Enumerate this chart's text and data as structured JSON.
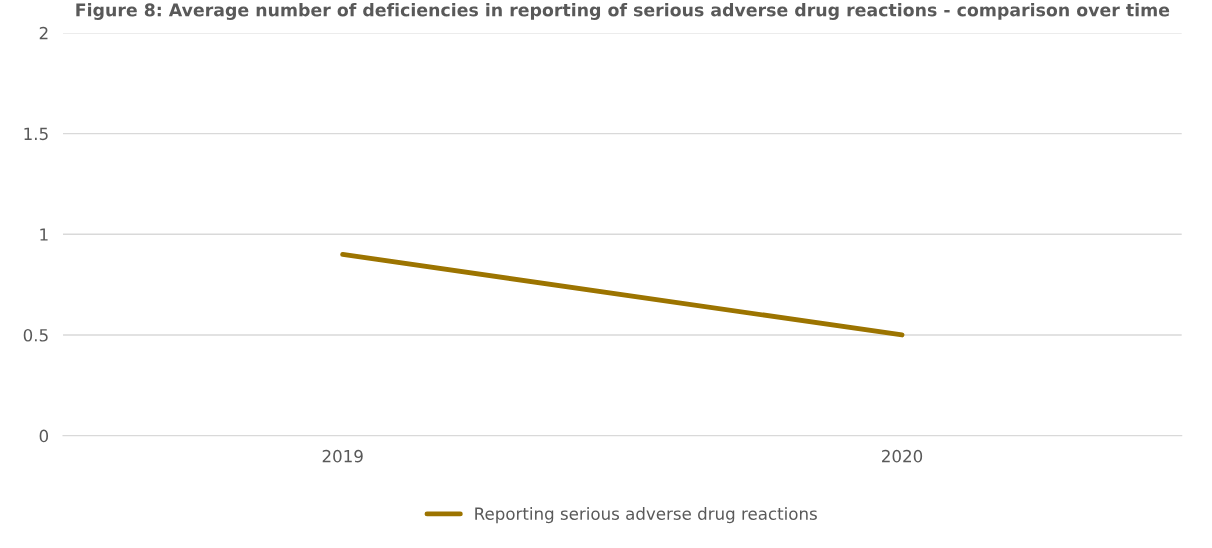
{
  "chart_data": {
    "type": "line",
    "title": "Figure 8: Average number of deficiencies in reporting of serious adverse drug reactions - comparison over time",
    "categories": [
      "2019",
      "2020"
    ],
    "series": [
      {
        "name": "Reporting serious adverse drug reactions",
        "color": "#9c7400",
        "values": [
          0.9,
          0.5
        ]
      }
    ],
    "ylim": [
      0,
      2
    ],
    "yticks": [
      0,
      0.5,
      1,
      1.5,
      2
    ],
    "grid": "y",
    "legend": "bottom",
    "marker": "none",
    "line_style": "solid"
  }
}
